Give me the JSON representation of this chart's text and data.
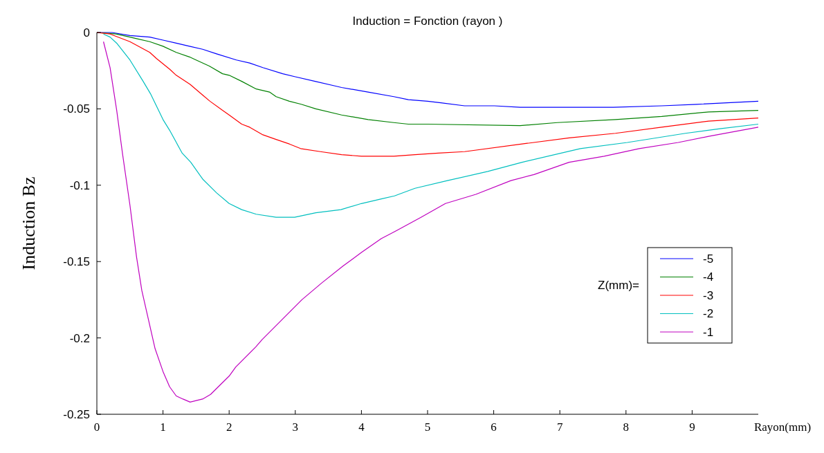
{
  "chart_data": {
    "type": "line",
    "title": "Induction = Fonction (rayon )",
    "xlabel": "Rayon(mm)",
    "ylabel": "Induction  Bz",
    "legend_title": "Z(mm)=",
    "xlim": [
      0,
      10
    ],
    "ylim": [
      -0.25,
      0
    ],
    "xticks": [
      0,
      1,
      2,
      3,
      4,
      5,
      6,
      7,
      8,
      9
    ],
    "yticks": [
      0,
      -0.05,
      -0.1,
      -0.15,
      -0.2,
      -0.25
    ],
    "grid": false,
    "legend": "right",
    "marker": "none",
    "line_style": "solid",
    "series": [
      {
        "name": "-5",
        "color": "#0000ff",
        "x": [
          0,
          0.23,
          0.5,
          0.8,
          1.0,
          1.2,
          1.4,
          1.6,
          1.81,
          2.11,
          2.31,
          2.51,
          2.81,
          3.0,
          3.3,
          3.6,
          3.7,
          4.1,
          4.49,
          4.71,
          5.0,
          5.2,
          5.56,
          6.01,
          6.4,
          7.81,
          8.54,
          9.07,
          10
        ],
        "values": [
          0,
          0,
          -0.002,
          -0.003,
          -0.005,
          -0.007,
          -0.009,
          -0.011,
          -0.014,
          -0.018,
          -0.02,
          -0.023,
          -0.027,
          -0.029,
          -0.032,
          -0.035,
          -0.036,
          -0.039,
          -0.042,
          -0.044,
          -0.045,
          -0.046,
          -0.048,
          -0.048,
          -0.049,
          -0.049,
          -0.048,
          -0.047,
          -0.045
        ]
      },
      {
        "name": "-4",
        "color": "#008000",
        "x": [
          0,
          0.29,
          0.5,
          0.6,
          0.8,
          1.0,
          1.2,
          1.4,
          1.5,
          1.7,
          1.9,
          2.0,
          2.19,
          2.41,
          2.61,
          2.71,
          2.91,
          3.09,
          3.31,
          3.7,
          4.1,
          4.49,
          4.71,
          5.0,
          6.4,
          6.96,
          7.84,
          8.54,
          9.25,
          10
        ],
        "values": [
          0,
          -0.001,
          -0.003,
          -0.004,
          -0.006,
          -0.009,
          -0.013,
          -0.016,
          -0.018,
          -0.022,
          -0.027,
          -0.028,
          -0.032,
          -0.037,
          -0.039,
          -0.042,
          -0.045,
          -0.047,
          -0.05,
          -0.054,
          -0.057,
          -0.059,
          -0.06,
          -0.06,
          -0.061,
          -0.059,
          -0.057,
          -0.055,
          -0.052,
          -0.051
        ]
      },
      {
        "name": "-3",
        "color": "#ff0000",
        "x": [
          0,
          0.2,
          0.5,
          0.8,
          0.9,
          1.1,
          1.2,
          1.41,
          1.6,
          1.71,
          1.9,
          2.0,
          2.19,
          2.31,
          2.51,
          2.71,
          2.91,
          3.08,
          3.38,
          3.7,
          4.0,
          4.49,
          4.81,
          5.16,
          5.56,
          6.43,
          7.14,
          7.84,
          8.54,
          9.25,
          10
        ],
        "values": [
          0,
          -0.001,
          -0.006,
          -0.013,
          -0.017,
          -0.024,
          -0.028,
          -0.034,
          -0.041,
          -0.045,
          -0.051,
          -0.054,
          -0.06,
          -0.062,
          -0.067,
          -0.07,
          -0.073,
          -0.076,
          -0.078,
          -0.08,
          -0.081,
          -0.081,
          -0.08,
          -0.079,
          -0.078,
          -0.073,
          -0.069,
          -0.066,
          -0.062,
          -0.058,
          -0.056
        ]
      },
      {
        "name": "-2",
        "color": "#00bfbf",
        "x": [
          0.1,
          0.2,
          0.3,
          0.5,
          0.7,
          0.81,
          1.0,
          1.1,
          1.29,
          1.42,
          1.6,
          1.81,
          2.0,
          2.19,
          2.41,
          2.71,
          2.99,
          3.31,
          3.69,
          4.0,
          4.3,
          4.5,
          4.81,
          5.3,
          5.91,
          6.43,
          7.31,
          8.02,
          8.9,
          9.42,
          10
        ],
        "values": [
          -0.001,
          -0.003,
          -0.007,
          -0.018,
          -0.032,
          -0.04,
          -0.057,
          -0.064,
          -0.079,
          -0.085,
          -0.096,
          -0.105,
          -0.112,
          -0.116,
          -0.119,
          -0.121,
          -0.121,
          -0.118,
          -0.116,
          -0.112,
          -0.109,
          -0.107,
          -0.102,
          -0.097,
          -0.091,
          -0.085,
          -0.076,
          -0.072,
          -0.066,
          -0.063,
          -0.06
        ]
      },
      {
        "name": "-1",
        "color": "#bf00bf",
        "x": [
          0.1,
          0.2,
          0.3,
          0.39,
          0.5,
          0.6,
          0.68,
          0.88,
          1.0,
          1.1,
          1.2,
          1.3,
          1.41,
          1.6,
          1.72,
          2.0,
          2.1,
          2.4,
          2.5,
          2.8,
          3.1,
          3.4,
          3.72,
          4.0,
          4.3,
          4.52,
          4.9,
          5.27,
          5.73,
          6.26,
          6.61,
          7.14,
          7.67,
          8.2,
          8.79,
          9.25,
          10
        ],
        "values": [
          -0.006,
          -0.023,
          -0.051,
          -0.08,
          -0.113,
          -0.147,
          -0.169,
          -0.207,
          -0.222,
          -0.232,
          -0.238,
          -0.24,
          -0.242,
          -0.24,
          -0.237,
          -0.225,
          -0.219,
          -0.206,
          -0.201,
          -0.188,
          -0.175,
          -0.164,
          -0.153,
          -0.144,
          -0.135,
          -0.13,
          -0.121,
          -0.112,
          -0.106,
          -0.097,
          -0.093,
          -0.085,
          -0.081,
          -0.076,
          -0.072,
          -0.068,
          -0.062
        ]
      }
    ]
  }
}
